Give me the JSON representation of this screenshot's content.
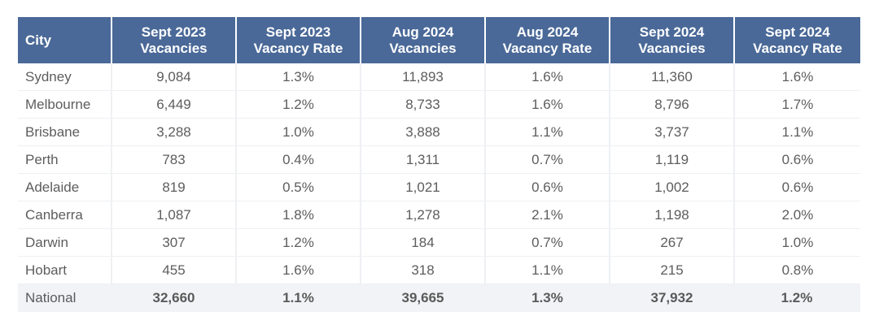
{
  "header": {
    "city": "City",
    "columns": [
      {
        "line1": "Sept 2023",
        "line2": "Vacancies"
      },
      {
        "line1": "Sept 2023",
        "line2": "Vacancy Rate"
      },
      {
        "line1": "Aug 2024",
        "line2": "Vacancies"
      },
      {
        "line1": "Aug 2024",
        "line2": "Vacancy Rate"
      },
      {
        "line1": "Sept 2024",
        "line2": "Vacancies"
      },
      {
        "line1": "Sept 2024",
        "line2": "Vacancy Rate"
      }
    ]
  },
  "rows": [
    {
      "city": "Sydney",
      "cells": [
        "9,084",
        "1.3%",
        "11,893",
        "1.6%",
        "11,360",
        "1.6%"
      ]
    },
    {
      "city": "Melbourne",
      "cells": [
        "6,449",
        "1.2%",
        "8,733",
        "1.6%",
        "8,796",
        "1.7%"
      ]
    },
    {
      "city": "Brisbane",
      "cells": [
        "3,288",
        "1.0%",
        "3,888",
        "1.1%",
        "3,737",
        "1.1%"
      ]
    },
    {
      "city": "Perth",
      "cells": [
        "783",
        "0.4%",
        "1,311",
        "0.7%",
        "1,119",
        "0.6%"
      ]
    },
    {
      "city": "Adelaide",
      "cells": [
        "819",
        "0.5%",
        "1,021",
        "0.6%",
        "1,002",
        "0.6%"
      ]
    },
    {
      "city": "Canberra",
      "cells": [
        "1,087",
        "1.8%",
        "1,278",
        "2.1%",
        "1,198",
        "2.0%"
      ]
    },
    {
      "city": "Darwin",
      "cells": [
        "307",
        "1.2%",
        "184",
        "0.7%",
        "267",
        "1.0%"
      ]
    },
    {
      "city": "Hobart",
      "cells": [
        "455",
        "1.6%",
        "318",
        "1.1%",
        "215",
        "0.8%"
      ]
    }
  ],
  "total": {
    "city": "National",
    "cells": [
      "32,660",
      "1.1%",
      "39,665",
      "1.3%",
      "37,932",
      "1.2%"
    ]
  },
  "colors": {
    "header_bg": "#4a6998",
    "header_text": "#ffffff",
    "body_text": "#5d5d5d",
    "total_bg": "#f1f3f6"
  }
}
